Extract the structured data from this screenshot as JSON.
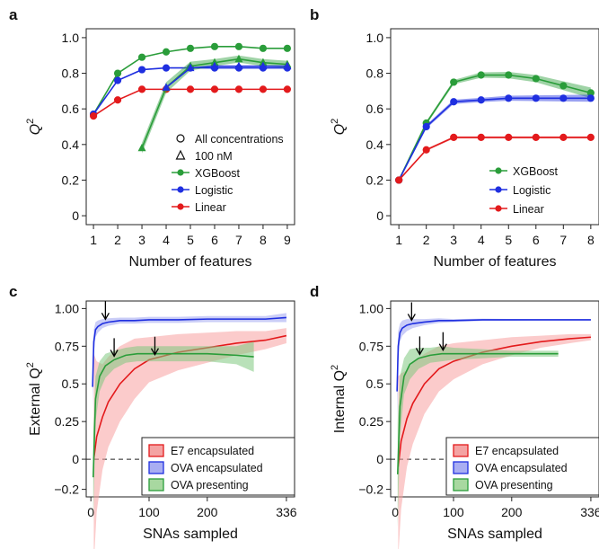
{
  "figure": {
    "panel_labels": [
      "a",
      "b",
      "c",
      "d"
    ]
  },
  "colors": {
    "xgboost": "#2a9d3a",
    "logistic": "#1f2fe0",
    "linear": "#e31a1c",
    "green_band": "#7fc97f",
    "blue_band": "#9fa4f0",
    "red_band": "#f7a1a1",
    "legend_red_fill": "#f4a3a3",
    "legend_blue_fill": "#a9aef2",
    "legend_green_fill": "#a8d8a0"
  },
  "chart_data": [
    {
      "panel": "a",
      "type": "line",
      "xlabel": "Number of features",
      "ylabel_main": "Q",
      "ylabel_sup": "2",
      "x": [
        1,
        2,
        3,
        4,
        5,
        6,
        7,
        8,
        9
      ],
      "xlim": [
        0.7,
        9.3
      ],
      "ylim": [
        -0.05,
        1.05
      ],
      "xticks": [
        "1",
        "2",
        "3",
        "4",
        "5",
        "6",
        "7",
        "8",
        "9"
      ],
      "yticks": [
        "0",
        "0.2",
        "0.4",
        "0.6",
        "0.8",
        "1.0"
      ],
      "ytick_values": [
        0,
        0.2,
        0.4,
        0.6,
        0.8,
        1.0
      ],
      "series": [
        {
          "name": "XGBoost",
          "key": "xgboost",
          "x": [
            1,
            2,
            3,
            4,
            5,
            6,
            7,
            8,
            9
          ],
          "values": [
            0.57,
            0.8,
            0.89,
            0.92,
            0.94,
            0.95,
            0.95,
            0.94,
            0.94
          ],
          "marker": "circle"
        },
        {
          "name": "Logistic",
          "key": "logistic",
          "x": [
            1,
            2,
            3,
            4,
            5,
            6,
            7,
            8,
            9
          ],
          "values": [
            0.57,
            0.76,
            0.82,
            0.83,
            0.83,
            0.83,
            0.83,
            0.83,
            0.83
          ],
          "marker": "circle"
        },
        {
          "name": "Linear",
          "key": "linear",
          "x": [
            1,
            2,
            3,
            4,
            5,
            6,
            7,
            8,
            9
          ],
          "values": [
            0.56,
            0.65,
            0.71,
            0.71,
            0.71,
            0.71,
            0.71,
            0.71,
            0.71
          ],
          "marker": "circle"
        },
        {
          "key": "xgboost",
          "x": [
            3,
            4,
            5,
            6,
            7,
            8,
            9
          ],
          "values": [
            0.38,
            0.72,
            0.84,
            0.86,
            0.88,
            0.86,
            0.85
          ],
          "band": [
            0.03,
            0.03,
            0.025,
            0.02,
            0.02,
            0.02,
            0.02
          ],
          "marker": "triangle"
        },
        {
          "key": "logistic",
          "x": [
            4,
            5,
            6,
            7,
            8,
            9
          ],
          "values": [
            0.72,
            0.83,
            0.84,
            0.84,
            0.84,
            0.84
          ],
          "marker": "triangle"
        }
      ],
      "legend": {
        "position": "bottom-right",
        "items": [
          {
            "label": "All concentrations",
            "marker": "open-circle"
          },
          {
            "label": "100 nM",
            "marker": "open-triangle"
          },
          {
            "label": "XGBoost",
            "key": "xgboost"
          },
          {
            "label": "Logistic",
            "key": "logistic"
          },
          {
            "label": "Linear",
            "key": "linear"
          }
        ]
      }
    },
    {
      "panel": "b",
      "type": "line",
      "xlabel": "Number of features",
      "ylabel_main": "Q",
      "ylabel_sup": "2",
      "x": [
        1,
        2,
        3,
        4,
        5,
        6,
        7,
        8
      ],
      "xlim": [
        0.7,
        8.3
      ],
      "ylim": [
        -0.05,
        1.05
      ],
      "xticks": [
        "1",
        "2",
        "3",
        "4",
        "5",
        "6",
        "7",
        "8"
      ],
      "yticks": [
        "0",
        "0.2",
        "0.4",
        "0.6",
        "0.8",
        "1.0"
      ],
      "ytick_values": [
        0,
        0.2,
        0.4,
        0.6,
        0.8,
        1.0
      ],
      "series": [
        {
          "name": "XGBoost",
          "key": "xgboost",
          "x": [
            1,
            2,
            3,
            4,
            5,
            6,
            7,
            8
          ],
          "values": [
            0.2,
            0.52,
            0.75,
            0.79,
            0.79,
            0.77,
            0.73,
            0.69
          ],
          "band": [
            0.005,
            0.01,
            0.012,
            0.015,
            0.018,
            0.02,
            0.025,
            0.03
          ],
          "marker": "circle"
        },
        {
          "name": "Logistic",
          "key": "logistic",
          "x": [
            1,
            2,
            3,
            4,
            5,
            6,
            7,
            8
          ],
          "values": [
            0.2,
            0.5,
            0.64,
            0.65,
            0.66,
            0.66,
            0.66,
            0.66
          ],
          "band": [
            0.005,
            0.01,
            0.012,
            0.012,
            0.014,
            0.016,
            0.018,
            0.02
          ],
          "marker": "circle"
        },
        {
          "name": "Linear",
          "key": "linear",
          "x": [
            1,
            2,
            3,
            4,
            5,
            6,
            7,
            8
          ],
          "values": [
            0.2,
            0.37,
            0.44,
            0.44,
            0.44,
            0.44,
            0.44,
            0.44
          ],
          "band": [
            0.004,
            0.006,
            0.006,
            0.006,
            0.006,
            0.006,
            0.006,
            0.006
          ],
          "marker": "circle"
        }
      ],
      "legend": {
        "position": "bottom-right",
        "items": [
          {
            "label": "XGBoost",
            "key": "xgboost"
          },
          {
            "label": "Logistic",
            "key": "logistic"
          },
          {
            "label": "Linear",
            "key": "linear"
          }
        ]
      }
    },
    {
      "panel": "c",
      "type": "line",
      "xlabel": "SNAs sampled",
      "ylabel_main": "External Q",
      "ylabel_sup": "2",
      "xlim": [
        -8,
        350
      ],
      "ylim": [
        -0.25,
        1.05
      ],
      "xticks": [
        "0",
        "100",
        "200",
        "336"
      ],
      "xtick_values": [
        0,
        100,
        200,
        336
      ],
      "yticks": [
        "−0.2",
        "0",
        "0.25",
        "0.5",
        "0.75",
        "1.00"
      ],
      "ytick_values": [
        -0.2,
        0,
        0.25,
        0.5,
        0.75,
        1.0
      ],
      "dashed_zero_to_x": 100,
      "series": [
        {
          "name": "E7 encapsulated",
          "key": "linear",
          "band_key": "red_band",
          "x": [
            5,
            10,
            20,
            30,
            50,
            75,
            100,
            150,
            200,
            250,
            300,
            336
          ],
          "values": [
            0.0,
            0.15,
            0.28,
            0.38,
            0.5,
            0.6,
            0.66,
            0.71,
            0.74,
            0.77,
            0.79,
            0.82
          ],
          "band": [
            0.7,
            0.5,
            0.35,
            0.3,
            0.25,
            0.2,
            0.15,
            0.12,
            0.1,
            0.08,
            0.06,
            0.05
          ]
        },
        {
          "name": "OVA encapsulated",
          "key": "logistic",
          "band_key": "blue_band",
          "x": [
            3,
            5,
            8,
            12,
            20,
            30,
            50,
            75,
            100,
            150,
            200,
            250,
            300,
            336
          ],
          "values": [
            0.48,
            0.78,
            0.86,
            0.88,
            0.9,
            0.91,
            0.92,
            0.92,
            0.925,
            0.925,
            0.93,
            0.93,
            0.93,
            0.94
          ],
          "band": [
            0.15,
            0.08,
            0.05,
            0.04,
            0.03,
            0.025,
            0.02,
            0.02,
            0.02,
            0.02,
            0.02,
            0.02,
            0.02,
            0.03
          ]
        },
        {
          "name": "OVA presenting",
          "key": "xgboost",
          "band_key": "green_band",
          "x": [
            4,
            8,
            15,
            25,
            40,
            60,
            80,
            100,
            150,
            200,
            250,
            280
          ],
          "values": [
            -0.12,
            0.4,
            0.55,
            0.62,
            0.66,
            0.69,
            0.7,
            0.7,
            0.7,
            0.7,
            0.69,
            0.68
          ],
          "band": [
            0.3,
            0.15,
            0.1,
            0.08,
            0.06,
            0.05,
            0.05,
            0.05,
            0.05,
            0.05,
            0.06,
            0.1
          ]
        }
      ],
      "arrows_x": [
        25,
        40,
        110
      ],
      "legend": {
        "position": "bottom-right",
        "items": [
          {
            "label": "E7 encapsulated",
            "key": "linear",
            "fill": "legend_red_fill"
          },
          {
            "label": "OVA encapsulated",
            "key": "logistic",
            "fill": "legend_blue_fill"
          },
          {
            "label": "OVA presenting",
            "key": "xgboost",
            "fill": "legend_green_fill"
          }
        ]
      }
    },
    {
      "panel": "d",
      "type": "line",
      "xlabel": "SNAs sampled",
      "ylabel_main": "Internal Q",
      "ylabel_sup": "2",
      "xlim": [
        -8,
        350
      ],
      "ylim": [
        -0.25,
        1.05
      ],
      "xticks": [
        "0",
        "100",
        "200",
        "336"
      ],
      "xtick_values": [
        0,
        100,
        200,
        336
      ],
      "yticks": [
        "−0.2",
        "0",
        "0.25",
        "0.5",
        "0.75",
        "1.00"
      ],
      "ytick_values": [
        -0.2,
        0,
        0.25,
        0.5,
        0.75,
        1.0
      ],
      "dashed_zero_to_x": 100,
      "series": [
        {
          "name": "E7 encapsulated",
          "key": "linear",
          "band_key": "red_band",
          "x": [
            5,
            10,
            20,
            30,
            50,
            75,
            100,
            150,
            200,
            250,
            300,
            336
          ],
          "values": [
            -0.05,
            0.12,
            0.27,
            0.37,
            0.5,
            0.6,
            0.65,
            0.71,
            0.75,
            0.78,
            0.8,
            0.81
          ],
          "band": [
            0.6,
            0.45,
            0.32,
            0.27,
            0.2,
            0.15,
            0.12,
            0.08,
            0.06,
            0.04,
            0.03,
            0.02
          ]
        },
        {
          "name": "OVA encapsulated",
          "key": "logistic",
          "band_key": "blue_band",
          "x": [
            3,
            5,
            8,
            12,
            20,
            30,
            50,
            75,
            100,
            150,
            200,
            250,
            300,
            336
          ],
          "values": [
            0.45,
            0.75,
            0.84,
            0.87,
            0.89,
            0.9,
            0.91,
            0.92,
            0.92,
            0.925,
            0.925,
            0.925,
            0.925,
            0.925
          ],
          "band": [
            0.2,
            0.1,
            0.06,
            0.05,
            0.04,
            0.03,
            0.02,
            0.015,
            0.01,
            0.008,
            0.006,
            0.005,
            0.005,
            0.005
          ]
        },
        {
          "name": "OVA presenting",
          "key": "xgboost",
          "band_key": "green_band",
          "x": [
            4,
            8,
            15,
            25,
            40,
            60,
            80,
            100,
            150,
            200,
            250,
            280
          ],
          "values": [
            -0.1,
            0.35,
            0.55,
            0.63,
            0.67,
            0.69,
            0.7,
            0.7,
            0.7,
            0.7,
            0.7,
            0.7
          ],
          "band": [
            0.35,
            0.2,
            0.12,
            0.1,
            0.07,
            0.05,
            0.05,
            0.04,
            0.03,
            0.02,
            0.02,
            0.02
          ]
        }
      ],
      "arrows_x": [
        28,
        42,
        82
      ],
      "legend": {
        "position": "bottom-right",
        "items": [
          {
            "label": "E7 encapsulated",
            "key": "linear",
            "fill": "legend_red_fill"
          },
          {
            "label": "OVA encapsulated",
            "key": "logistic",
            "fill": "legend_blue_fill"
          },
          {
            "label": "OVA presenting",
            "key": "xgboost",
            "fill": "legend_green_fill"
          }
        ]
      }
    }
  ]
}
